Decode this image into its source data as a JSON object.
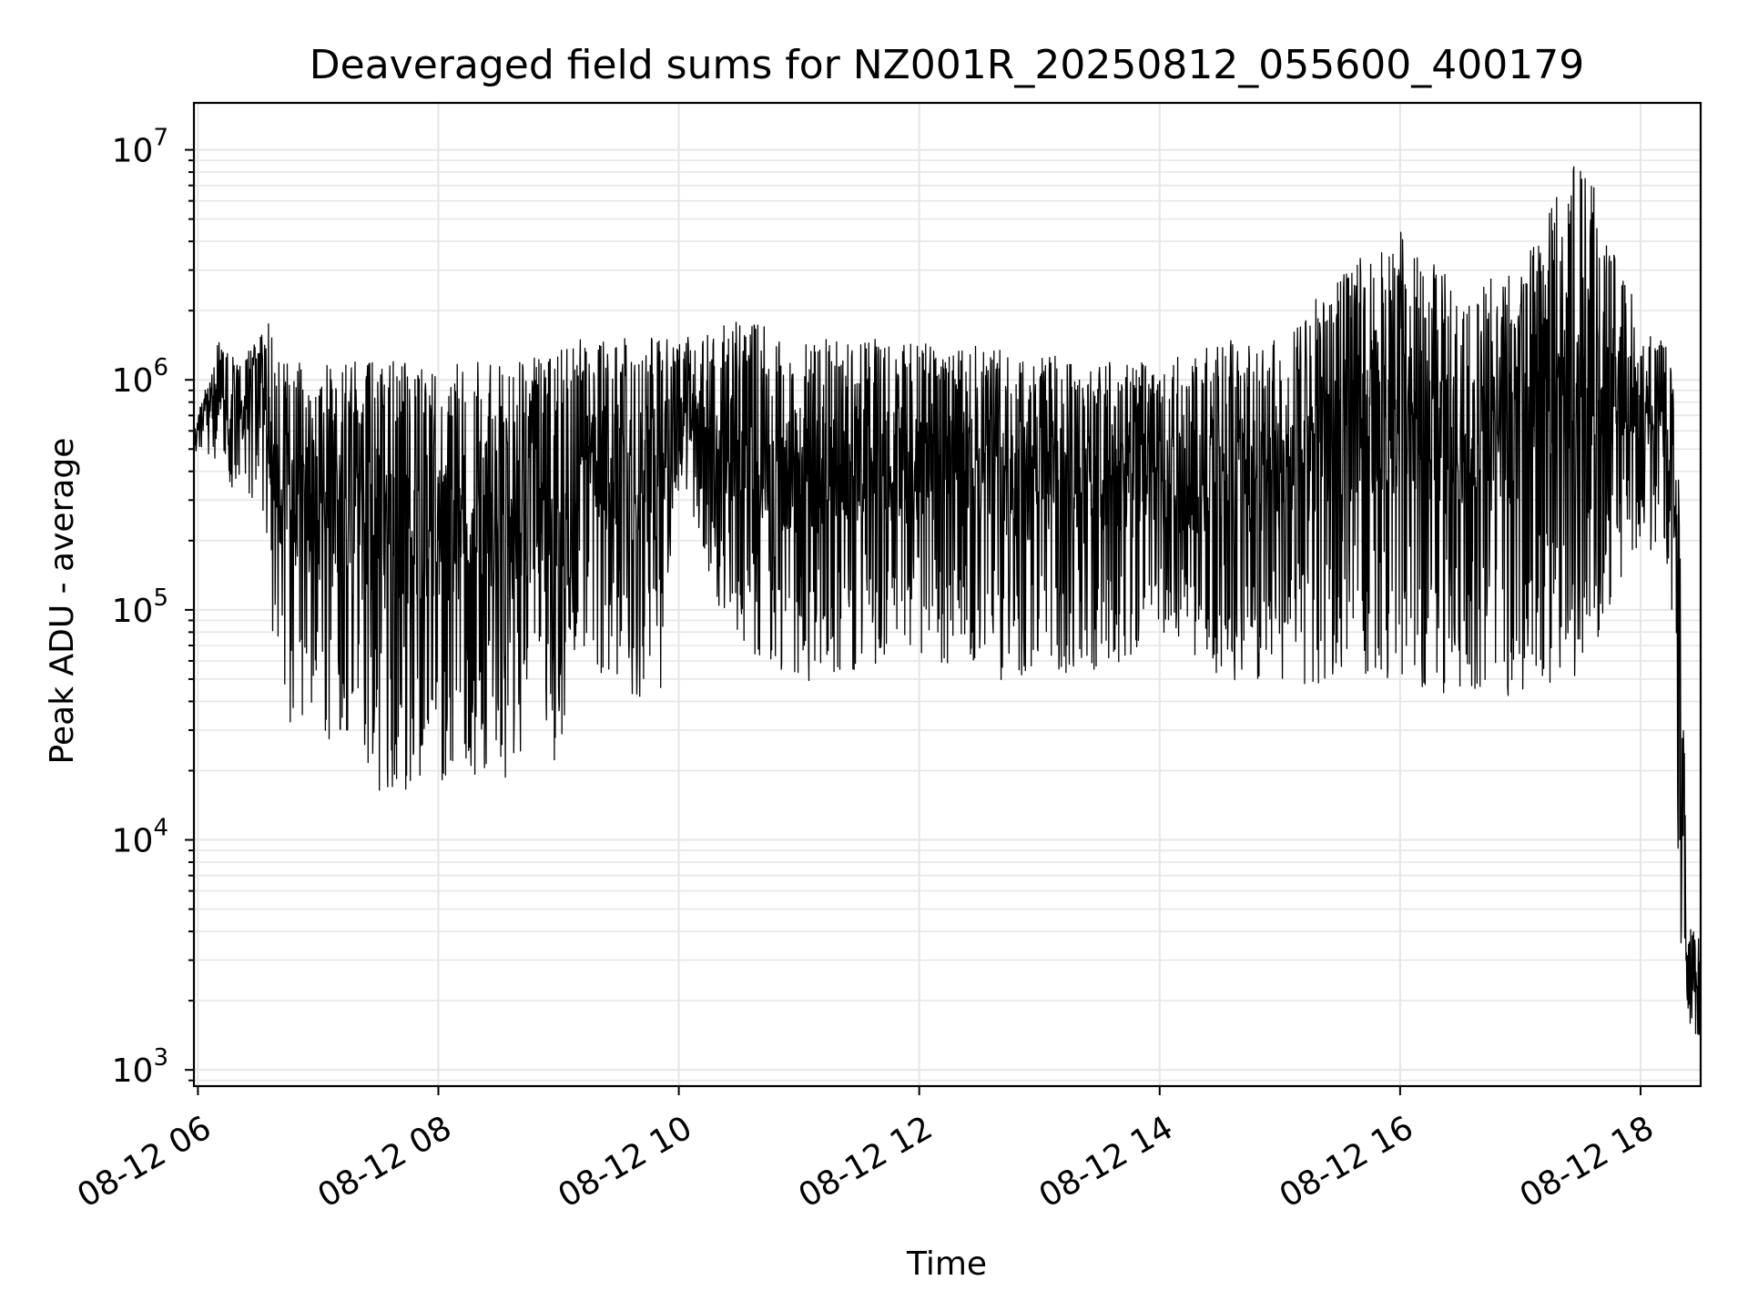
{
  "chart_data": {
    "type": "line",
    "title": "Deaveraged field sums for NZ001R_20250812_055600_400179",
    "xlabel": "Time",
    "ylabel": "Peak ADU - average",
    "yscale": "log",
    "grid": true,
    "legend": "none",
    "line_color": "#000000",
    "grid_color": "#e6e6e6",
    "xlim": [
      "2025-08-12 05:58",
      "2025-08-12 18:30"
    ],
    "ylim": [
      850,
      16000000
    ],
    "x_ticks": [
      {
        "at": "2025-08-12 06:00",
        "label": "08-12 06"
      },
      {
        "at": "2025-08-12 08:00",
        "label": "08-12 08"
      },
      {
        "at": "2025-08-12 10:00",
        "label": "08-12 10"
      },
      {
        "at": "2025-08-12 12:00",
        "label": "08-12 12"
      },
      {
        "at": "2025-08-12 14:00",
        "label": "08-12 14"
      },
      {
        "at": "2025-08-12 16:00",
        "label": "08-12 16"
      },
      {
        "at": "2025-08-12 18:00",
        "label": "08-12 18"
      }
    ],
    "y_ticks": [
      {
        "value": 1000,
        "base": "10",
        "exp": "3"
      },
      {
        "value": 10000,
        "base": "10",
        "exp": "4"
      },
      {
        "value": 100000,
        "base": "10",
        "exp": "5"
      },
      {
        "value": 1000000,
        "base": "10",
        "exp": "6"
      },
      {
        "value": 10000000,
        "base": "10",
        "exp": "7"
      }
    ],
    "series": [
      {
        "x": [
          "2025-08-12 05:58",
          "2025-08-12 06:10",
          "2025-08-12 06:20",
          "2025-08-12 06:30",
          "2025-08-12 06:36",
          "2025-08-12 06:40",
          "2025-08-12 06:45",
          "2025-08-12 07:00",
          "2025-08-12 07:30",
          "2025-08-12 08:00",
          "2025-08-12 08:30",
          "2025-08-12 09:00",
          "2025-08-12 09:06",
          "2025-08-12 09:10",
          "2025-08-12 09:30",
          "2025-08-12 09:50",
          "2025-08-12 10:00",
          "2025-08-12 10:30",
          "2025-08-12 11:00",
          "2025-08-12 11:30",
          "2025-08-12 12:00",
          "2025-08-12 12:30",
          "2025-08-12 13:00",
          "2025-08-12 13:30",
          "2025-08-12 14:00",
          "2025-08-12 14:30",
          "2025-08-12 15:00",
          "2025-08-12 15:30",
          "2025-08-12 16:00",
          "2025-08-12 16:30",
          "2025-08-12 17:00",
          "2025-08-12 17:30",
          "2025-08-12 18:00",
          "2025-08-12 18:15",
          "2025-08-12 18:20",
          "2025-08-12 18:23",
          "2025-08-12 18:26",
          "2025-08-12 18:30"
        ],
        "low": [
          450000,
          400000,
          300000,
          280000,
          100000,
          50000,
          30000,
          25000,
          15000,
          18000,
          18000,
          20000,
          60000,
          60000,
          45000,
          35000,
          300000,
          60000,
          45000,
          55000,
          60000,
          50000,
          45000,
          50000,
          55000,
          50000,
          45000,
          50000,
          45000,
          40000,
          40000,
          50000,
          200000,
          150000,
          3000,
          2000,
          1300,
          1000
        ],
        "high": [
          600000,
          1500000,
          1200000,
          1500000,
          1800000,
          1300000,
          1200000,
          1200000,
          1200000,
          1200000,
          1200000,
          1300000,
          1500000,
          1600000,
          1600000,
          1600000,
          1500000,
          1800000,
          1600000,
          1500000,
          1500000,
          1400000,
          1300000,
          1200000,
          1200000,
          1500000,
          1500000,
          3000000,
          4500000,
          2500000,
          3000000,
          10000000,
          2000000,
          1300000,
          300000,
          5000,
          4500,
          4000
        ]
      }
    ]
  }
}
